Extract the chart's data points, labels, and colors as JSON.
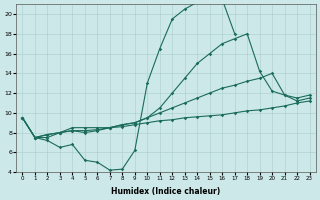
{
  "xlabel": "Humidex (Indice chaleur)",
  "background_color": "#cce8e8",
  "grid_color": "#aacccc",
  "line_color": "#1a6b5a",
  "xlim": [
    -0.5,
    23.5
  ],
  "ylim": [
    4,
    21
  ],
  "xticks": [
    0,
    1,
    2,
    3,
    4,
    5,
    6,
    7,
    8,
    9,
    10,
    11,
    12,
    13,
    14,
    15,
    16,
    17,
    18,
    19,
    20,
    21,
    22,
    23
  ],
  "yticks": [
    4,
    6,
    8,
    10,
    12,
    14,
    16,
    18,
    20
  ],
  "series": [
    {
      "x": [
        0,
        1,
        2,
        3,
        4,
        5,
        6,
        7,
        8,
        9,
        10,
        11,
        12,
        13,
        14,
        15,
        16,
        17
      ],
      "y": [
        9.5,
        7.5,
        7.2,
        6.5,
        6.8,
        5.2,
        5.0,
        4.2,
        4.3,
        6.2,
        13.0,
        16.5,
        19.5,
        20.5,
        21.2,
        21.5,
        21.5,
        18.0
      ]
    },
    {
      "x": [
        0,
        1,
        2,
        3,
        4,
        5,
        6,
        7,
        8,
        9,
        10,
        11,
        12,
        13,
        14,
        15,
        16,
        17,
        18,
        19,
        20,
        21,
        22,
        23
      ],
      "y": [
        9.5,
        7.5,
        7.5,
        8.0,
        8.5,
        8.5,
        8.5,
        8.5,
        8.8,
        9.0,
        9.5,
        10.5,
        12.0,
        13.5,
        15.0,
        16.0,
        17.0,
        17.5,
        18.0,
        14.2,
        12.2,
        11.8,
        11.5,
        11.8
      ]
    },
    {
      "x": [
        0,
        1,
        2,
        3,
        4,
        5,
        6,
        7,
        8,
        9,
        10,
        11,
        12,
        13,
        14,
        15,
        16,
        17,
        18,
        19,
        20,
        21,
        22,
        23
      ],
      "y": [
        9.5,
        7.5,
        7.8,
        8.0,
        8.2,
        8.0,
        8.2,
        8.5,
        8.8,
        9.0,
        9.5,
        10.0,
        10.5,
        11.0,
        11.5,
        12.0,
        12.5,
        12.8,
        13.2,
        13.5,
        14.0,
        11.8,
        11.2,
        11.5
      ]
    },
    {
      "x": [
        0,
        1,
        2,
        3,
        4,
        5,
        6,
        7,
        8,
        9,
        10,
        11,
        12,
        13,
        14,
        15,
        16,
        17,
        18,
        19,
        20,
        21,
        22,
        23
      ],
      "y": [
        9.5,
        7.5,
        7.8,
        8.0,
        8.2,
        8.2,
        8.3,
        8.5,
        8.6,
        8.8,
        9.0,
        9.2,
        9.3,
        9.5,
        9.6,
        9.7,
        9.8,
        10.0,
        10.2,
        10.3,
        10.5,
        10.7,
        11.0,
        11.2
      ]
    }
  ]
}
